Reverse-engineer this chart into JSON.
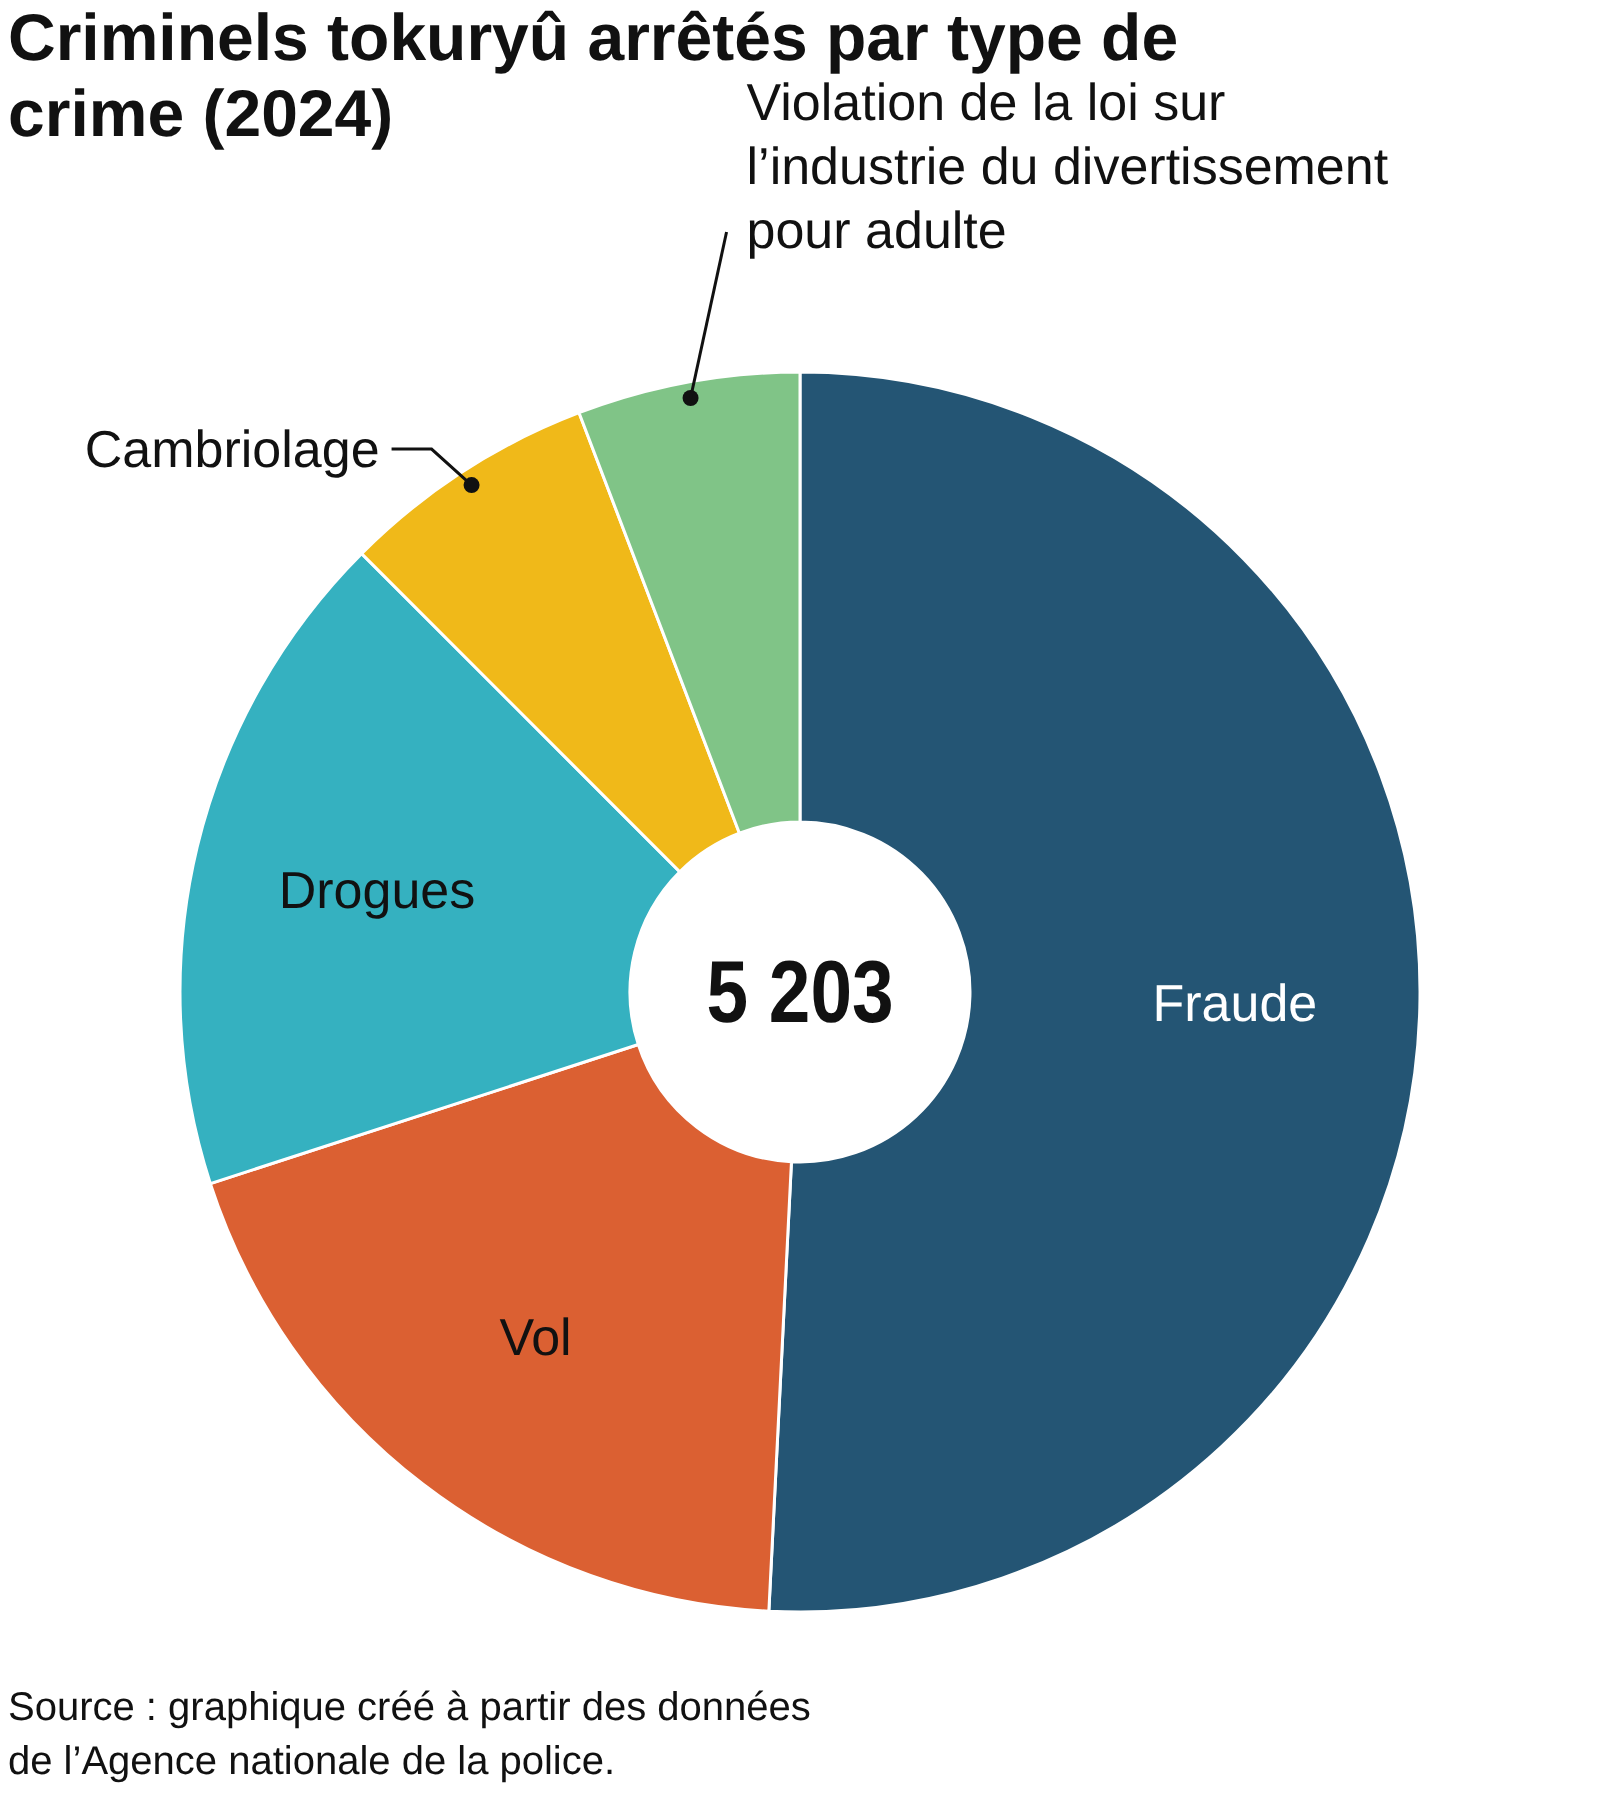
{
  "chart_data": {
    "type": "donut",
    "title": "Criminels tokuryû arrêtés par type de crime (2024)",
    "categories": [
      "Fraude",
      "Vol",
      "Drogues",
      "Cambriolage",
      "Violation de la loi sur l’industrie du divertissement pour adulte"
    ],
    "values": [
      50.8,
      19.2,
      17.5,
      6.7,
      5.8
    ],
    "colors": [
      "#245574",
      "#db6032",
      "#35b1c0",
      "#f0b919",
      "#80c487"
    ],
    "annotations": [
      "5 203",
      "Source : graphique créé à partir des données de l’Agence nationale de la police."
    ]
  }
}
